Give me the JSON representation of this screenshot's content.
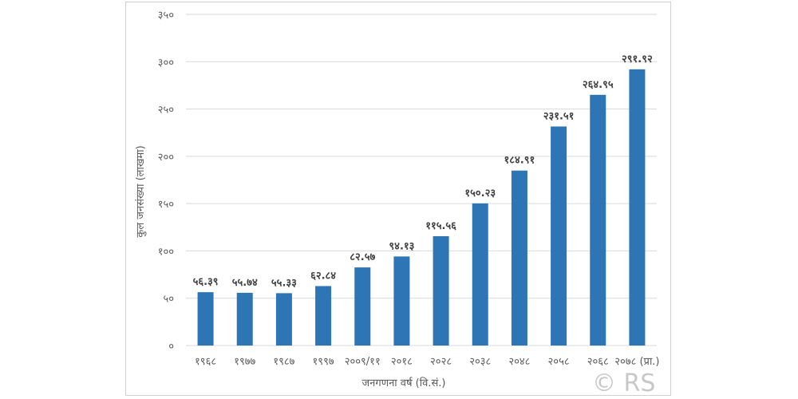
{
  "chart_data": {
    "type": "bar",
    "categories": [
      "१९६८",
      "१९७७",
      "१९८७",
      "१९९७",
      "२००९/११",
      "२०१८",
      "२०२८",
      "२०३८",
      "२०४८",
      "२०५८",
      "२०६८",
      "२०७८ (प्रा.)"
    ],
    "values": [
      56.39,
      55.74,
      55.33,
      62.84,
      82.57,
      94.13,
      115.56,
      150.23,
      184.91,
      231.51,
      264.95,
      291.92
    ],
    "data_labels": [
      "५६.३९",
      "५५.७४",
      "५५.३३",
      "६२.८४",
      "८२.५७",
      "९४.१३",
      "११५.५६",
      "१५०.२३",
      "१८४.९१",
      "२३१.५१",
      "२६४.९५",
      "२९१.९२"
    ],
    "y_ticks": [
      0,
      50,
      100,
      150,
      200,
      250,
      300,
      350
    ],
    "y_tick_labels": [
      "०",
      "५०",
      "१००",
      "१५०",
      "२००",
      "२५०",
      "३००",
      "३५०"
    ],
    "ylim": [
      0,
      350
    ],
    "xlabel": "जनगणना वर्ष (वि.सं.)",
    "ylabel": "कुल जनसंख्या (लाखमा)",
    "grid": true,
    "bar_color": "#2e75b6",
    "grid_color": "#d9d9d9"
  },
  "watermark": "© RS"
}
